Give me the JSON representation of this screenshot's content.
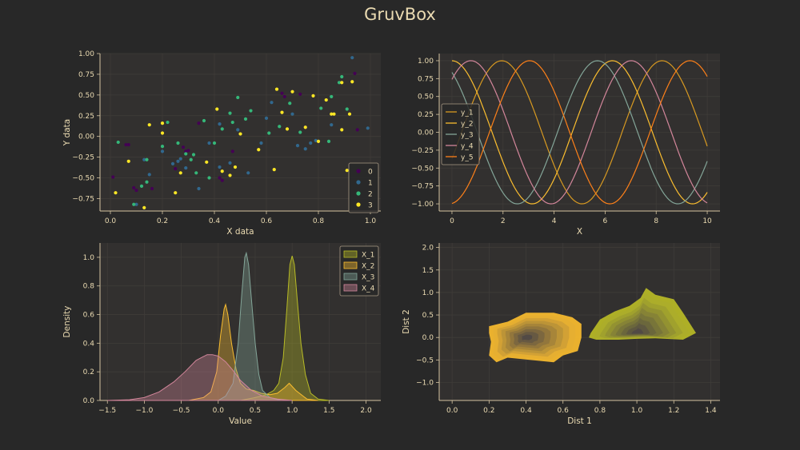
{
  "title": "GruvBox",
  "colors": {
    "background": "#282828",
    "axes_bg": "#32302f",
    "text": "#ebdbb2",
    "grid": "#3f3c39",
    "spine": "#d5c4a1"
  },
  "chart_data": [
    {
      "type": "scatter",
      "xlabel": "X data",
      "ylabel": "Y data",
      "xlim": [
        -0.04,
        1.04
      ],
      "ylim": [
        -0.9,
        1.0
      ],
      "xticks": [
        0.0,
        0.2,
        0.4,
        0.6,
        0.8,
        1.0
      ],
      "xtick_labels": [
        "0.0",
        "0.2",
        "0.4",
        "0.6",
        "0.8",
        "1.0"
      ],
      "yticks": [
        -0.75,
        -0.5,
        -0.25,
        0.0,
        0.25,
        0.5,
        0.75,
        1.0
      ],
      "ytick_labels": [
        "−0.75",
        "−0.50",
        "−0.25",
        "0.00",
        "0.25",
        "0.50",
        "0.75",
        "1.00"
      ],
      "grid": true,
      "legend_position": "lower-right",
      "series": [
        {
          "name": "0",
          "color": "#440154",
          "points": [
            [
              0.01,
              -0.49
            ],
            [
              0.06,
              -0.1
            ],
            [
              0.07,
              -0.1
            ],
            [
              0.09,
              -0.62
            ],
            [
              0.1,
              -0.65
            ],
            [
              0.16,
              -0.63
            ],
            [
              0.25,
              -0.39
            ],
            [
              0.28,
              -0.13
            ],
            [
              0.29,
              -0.18
            ],
            [
              0.3,
              -0.17
            ],
            [
              0.34,
              0.16
            ],
            [
              0.42,
              -0.5
            ],
            [
              0.43,
              -0.53
            ],
            [
              0.47,
              -0.18
            ],
            [
              0.66,
              0.52
            ],
            [
              0.67,
              0.48
            ],
            [
              0.73,
              0.51
            ],
            [
              0.75,
              0.11
            ],
            [
              0.94,
              0.76
            ],
            [
              0.95,
              0.08
            ]
          ]
        },
        {
          "name": "1",
          "color": "#31688e",
          "points": [
            [
              0.1,
              -0.82
            ],
            [
              0.13,
              -0.28
            ],
            [
              0.15,
              -0.46
            ],
            [
              0.2,
              -0.18
            ],
            [
              0.24,
              -0.33
            ],
            [
              0.26,
              -0.3
            ],
            [
              0.27,
              -0.27
            ],
            [
              0.29,
              -0.38
            ],
            [
              0.34,
              -0.63
            ],
            [
              0.38,
              -0.08
            ],
            [
              0.42,
              0.15
            ],
            [
              0.42,
              -0.37
            ],
            [
              0.46,
              -0.32
            ],
            [
              0.49,
              0.08
            ],
            [
              0.53,
              -0.44
            ],
            [
              0.58,
              -0.08
            ],
            [
              0.6,
              0.22
            ],
            [
              0.62,
              0.41
            ],
            [
              0.7,
              0.27
            ],
            [
              0.72,
              -0.11
            ],
            [
              0.75,
              -0.15
            ],
            [
              0.77,
              -0.08
            ],
            [
              0.79,
              -0.05
            ],
            [
              0.85,
              0.14
            ],
            [
              0.93,
              0.95
            ],
            [
              0.99,
              0.1
            ]
          ]
        },
        {
          "name": "2",
          "color": "#35b779",
          "points": [
            [
              0.03,
              -0.07
            ],
            [
              0.09,
              -0.82
            ],
            [
              0.12,
              -0.6
            ],
            [
              0.14,
              -0.28
            ],
            [
              0.14,
              -0.55
            ],
            [
              0.2,
              -0.12
            ],
            [
              0.22,
              0.17
            ],
            [
              0.26,
              -0.08
            ],
            [
              0.29,
              -0.21
            ],
            [
              0.31,
              -0.28
            ],
            [
              0.32,
              -0.22
            ],
            [
              0.33,
              -0.44
            ],
            [
              0.36,
              0.19
            ],
            [
              0.38,
              -0.5
            ],
            [
              0.4,
              -0.08
            ],
            [
              0.43,
              0.09
            ],
            [
              0.46,
              0.28
            ],
            [
              0.47,
              0.17
            ],
            [
              0.49,
              0.47
            ],
            [
              0.52,
              0.21
            ],
            [
              0.54,
              0.31
            ],
            [
              0.61,
              0.04
            ],
            [
              0.65,
              0.12
            ],
            [
              0.69,
              0.4
            ],
            [
              0.73,
              0.05
            ],
            [
              0.81,
              0.34
            ],
            [
              0.84,
              -0.06
            ],
            [
              0.85,
              0.48
            ],
            [
              0.88,
              0.65
            ],
            [
              0.89,
              0.72
            ],
            [
              0.91,
              0.33
            ]
          ]
        },
        {
          "name": "3",
          "color": "#fde725",
          "points": [
            [
              0.02,
              -0.68
            ],
            [
              0.07,
              -0.3
            ],
            [
              0.13,
              -0.86
            ],
            [
              0.15,
              0.14
            ],
            [
              0.2,
              0.16
            ],
            [
              0.2,
              0.04
            ],
            [
              0.25,
              -0.68
            ],
            [
              0.27,
              -0.44
            ],
            [
              0.37,
              -0.31
            ],
            [
              0.41,
              0.33
            ],
            [
              0.43,
              -0.42
            ],
            [
              0.46,
              -0.47
            ],
            [
              0.48,
              -0.37
            ],
            [
              0.5,
              0.03
            ],
            [
              0.57,
              -0.16
            ],
            [
              0.63,
              -0.4
            ],
            [
              0.64,
              0.57
            ],
            [
              0.66,
              0.29
            ],
            [
              0.68,
              0.09
            ],
            [
              0.7,
              0.54
            ],
            [
              0.75,
              0.11
            ],
            [
              0.78,
              0.49
            ],
            [
              0.8,
              -0.06
            ],
            [
              0.83,
              0.44
            ],
            [
              0.85,
              0.27
            ],
            [
              0.86,
              0.27
            ],
            [
              0.89,
              0.08
            ],
            [
              0.89,
              0.65
            ],
            [
              0.91,
              -0.41
            ],
            [
              0.92,
              0.27
            ],
            [
              0.93,
              0.66
            ]
          ]
        }
      ]
    },
    {
      "type": "line",
      "xlabel": "X",
      "ylabel": "",
      "xlim": [
        -0.5,
        10.5
      ],
      "ylim": [
        -1.1,
        1.1
      ],
      "xticks": [
        0,
        2,
        4,
        6,
        8,
        10
      ],
      "xtick_labels": [
        "0",
        "2",
        "4",
        "6",
        "8",
        "10"
      ],
      "yticks": [
        -1.0,
        -0.75,
        -0.5,
        -0.25,
        0.0,
        0.25,
        0.5,
        0.75,
        1.0
      ],
      "ytick_labels": [
        "−1.00",
        "−0.75",
        "−0.50",
        "−0.25",
        "0.00",
        "0.25",
        "0.50",
        "0.75",
        "1.00"
      ],
      "grid": true,
      "legend_position": "center-left",
      "x_range": [
        0,
        10
      ],
      "series": [
        {
          "name": "y_1",
          "color": "#d79921",
          "phase": 1.95
        },
        {
          "name": "y_2",
          "color": "#fabd2f",
          "phase": 0.0
        },
        {
          "name": "y_3",
          "color": "#83a598",
          "phase": -0.58
        },
        {
          "name": "y_4",
          "color": "#d3869b",
          "phase": 0.74
        },
        {
          "name": "y_5",
          "color": "#fe8019",
          "phase": 3.04
        }
      ]
    },
    {
      "type": "area",
      "xlabel": "Value",
      "ylabel": "Density",
      "xlim": [
        -1.6,
        2.2
      ],
      "ylim": [
        0.0,
        1.1
      ],
      "xticks": [
        -1.5,
        -1.0,
        -0.5,
        0.0,
        0.5,
        1.0,
        1.5,
        2.0
      ],
      "xtick_labels": [
        "−1.5",
        "−1.0",
        "−0.5",
        "0.0",
        "0.5",
        "1.0",
        "1.5",
        "2.0"
      ],
      "yticks": [
        0.0,
        0.2,
        0.4,
        0.6,
        0.8,
        1.0
      ],
      "ytick_labels": [
        "0.0",
        "0.2",
        "0.4",
        "0.6",
        "0.8",
        "1.0"
      ],
      "grid": true,
      "legend_position": "top-right",
      "series": [
        {
          "name": "X_1",
          "color": "#b8bb26",
          "points": [
            [
              0.3,
              0.0
            ],
            [
              0.5,
              0.02
            ],
            [
              0.65,
              0.04
            ],
            [
              0.75,
              0.07
            ],
            [
              0.82,
              0.12
            ],
            [
              0.88,
              0.3
            ],
            [
              0.93,
              0.65
            ],
            [
              0.97,
              0.95
            ],
            [
              1.0,
              1.01
            ],
            [
              1.03,
              0.95
            ],
            [
              1.07,
              0.7
            ],
            [
              1.12,
              0.4
            ],
            [
              1.18,
              0.18
            ],
            [
              1.25,
              0.05
            ],
            [
              1.35,
              0.01
            ],
            [
              1.5,
              0.0
            ]
          ]
        },
        {
          "name": "X_2",
          "color": "#fabd2f",
          "points": [
            [
              -0.4,
              0.0
            ],
            [
              -0.2,
              0.02
            ],
            [
              -0.1,
              0.06
            ],
            [
              -0.02,
              0.2
            ],
            [
              0.03,
              0.45
            ],
            [
              0.08,
              0.64
            ],
            [
              0.1,
              0.67
            ],
            [
              0.13,
              0.6
            ],
            [
              0.18,
              0.4
            ],
            [
              0.24,
              0.22
            ],
            [
              0.3,
              0.12
            ],
            [
              0.38,
              0.08
            ],
            [
              0.48,
              0.07
            ],
            [
              0.58,
              0.05
            ],
            [
              0.7,
              0.04
            ],
            [
              0.8,
              0.05
            ],
            [
              0.9,
              0.09
            ],
            [
              0.96,
              0.12
            ],
            [
              1.05,
              0.07
            ],
            [
              1.2,
              0.01
            ],
            [
              1.35,
              0.0
            ]
          ]
        },
        {
          "name": "X_3",
          "color": "#83a598",
          "points": [
            [
              0.0,
              0.0
            ],
            [
              0.1,
              0.03
            ],
            [
              0.2,
              0.12
            ],
            [
              0.27,
              0.4
            ],
            [
              0.32,
              0.75
            ],
            [
              0.36,
              1.0
            ],
            [
              0.38,
              1.03
            ],
            [
              0.41,
              0.95
            ],
            [
              0.45,
              0.7
            ],
            [
              0.5,
              0.4
            ],
            [
              0.55,
              0.18
            ],
            [
              0.6,
              0.07
            ],
            [
              0.7,
              0.02
            ],
            [
              0.85,
              0.0
            ]
          ]
        },
        {
          "name": "X_4",
          "color": "#d3869b",
          "points": [
            [
              -1.5,
              0.0
            ],
            [
              -1.2,
              0.005
            ],
            [
              -1.0,
              0.02
            ],
            [
              -0.8,
              0.06
            ],
            [
              -0.6,
              0.13
            ],
            [
              -0.45,
              0.2
            ],
            [
              -0.3,
              0.28
            ],
            [
              -0.15,
              0.32
            ],
            [
              -0.08,
              0.32
            ],
            [
              0.0,
              0.31
            ],
            [
              0.1,
              0.27
            ],
            [
              0.2,
              0.21
            ],
            [
              0.3,
              0.14
            ],
            [
              0.45,
              0.07
            ],
            [
              0.6,
              0.03
            ],
            [
              0.8,
              0.01
            ],
            [
              1.0,
              0.0
            ]
          ]
        }
      ]
    },
    {
      "type": "contour",
      "xlabel": "Dist 1",
      "ylabel": "Dist 2",
      "xlim": [
        -0.07,
        1.45
      ],
      "ylim": [
        -1.4,
        2.1
      ],
      "xticks": [
        0.0,
        0.2,
        0.4,
        0.6,
        0.8,
        1.0,
        1.2,
        1.4
      ],
      "xtick_labels": [
        "0.0",
        "0.2",
        "0.4",
        "0.6",
        "0.8",
        "1.0",
        "1.2",
        "1.4"
      ],
      "yticks": [
        -1.0,
        -0.5,
        0.0,
        0.5,
        1.0,
        1.5,
        2.0
      ],
      "ytick_labels": [
        "−1.0",
        "−0.5",
        "0.0",
        "0.5",
        "1.0",
        "1.5",
        "2.0"
      ],
      "grid": true,
      "groups": [
        {
          "name": "orange",
          "color_outer": "#fabd2f",
          "color_inner": "#504945",
          "center": [
            0.4,
            0.0
          ],
          "outline": [
            [
              0.2,
              0.25
            ],
            [
              0.3,
              0.35
            ],
            [
              0.4,
              0.55
            ],
            [
              0.55,
              0.55
            ],
            [
              0.65,
              0.45
            ],
            [
              0.7,
              0.3
            ],
            [
              0.7,
              0.0
            ],
            [
              0.68,
              -0.3
            ],
            [
              0.6,
              -0.4
            ],
            [
              0.55,
              -0.55
            ],
            [
              0.42,
              -0.5
            ],
            [
              0.3,
              -0.45
            ],
            [
              0.24,
              -0.55
            ],
            [
              0.2,
              -0.4
            ],
            [
              0.21,
              -0.1
            ],
            [
              0.2,
              0.1
            ]
          ]
        },
        {
          "name": "olive",
          "color_outer": "#b8bb26",
          "color_inner": "#504945",
          "center": [
            1.0,
            0.1
          ],
          "outline": [
            [
              0.75,
              0.1
            ],
            [
              0.8,
              0.4
            ],
            [
              0.88,
              0.58
            ],
            [
              0.96,
              0.7
            ],
            [
              1.02,
              0.88
            ],
            [
              1.05,
              1.1
            ],
            [
              1.1,
              0.95
            ],
            [
              1.2,
              0.85
            ],
            [
              1.25,
              0.55
            ],
            [
              1.32,
              0.1
            ],
            [
              1.25,
              -0.05
            ],
            [
              1.1,
              -0.02
            ],
            [
              1.0,
              -0.03
            ],
            [
              0.9,
              -0.05
            ],
            [
              0.78,
              -0.05
            ],
            [
              0.74,
              0.0
            ]
          ]
        }
      ]
    }
  ]
}
